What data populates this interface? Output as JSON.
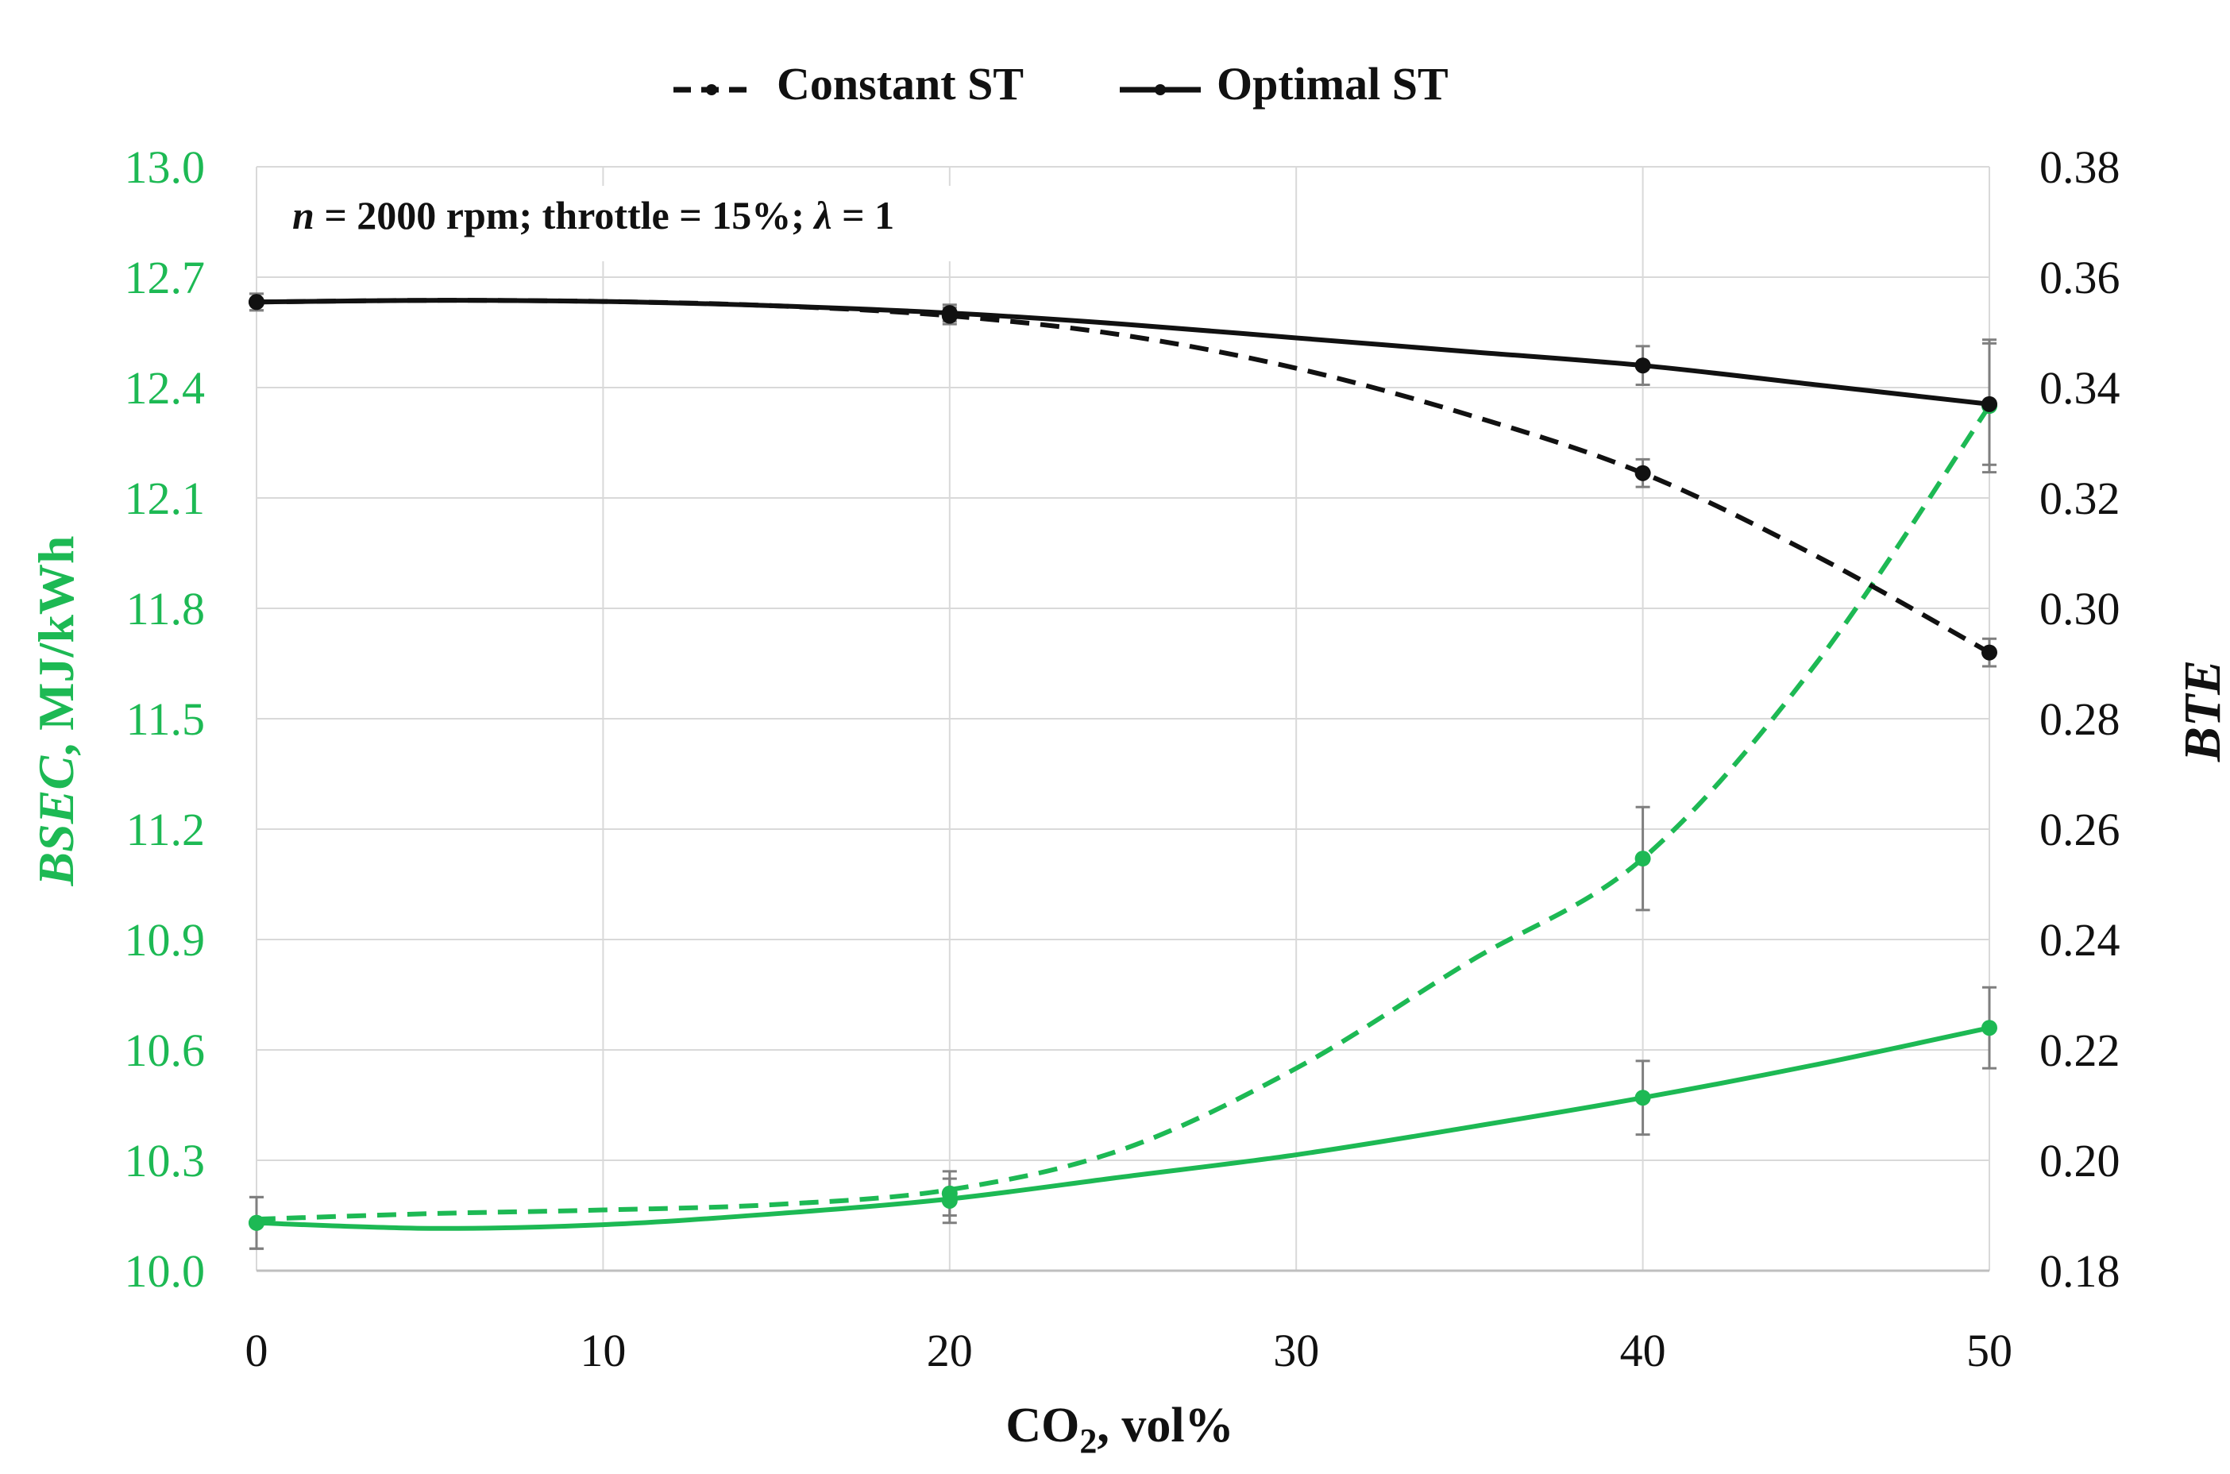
{
  "chart_data": {
    "type": "line",
    "x": [
      0,
      20,
      40,
      50
    ],
    "xlim": [
      0,
      50
    ],
    "xticks": [
      0,
      10,
      20,
      30,
      40,
      50
    ],
    "xticklabels": [
      "0",
      "10",
      "20",
      "30",
      "40",
      "50"
    ],
    "xlabel": {
      "main": "CO",
      "sub": "2",
      "rest": ", vol%"
    },
    "left_axis": {
      "ylim": [
        10.0,
        13.0
      ],
      "ticks": [
        10.0,
        10.3,
        10.6,
        10.9,
        11.2,
        11.5,
        11.8,
        12.1,
        12.4,
        12.7,
        13.0
      ],
      "ticklabels": [
        "10.0",
        "10.3",
        "10.6",
        "10.9",
        "11.2",
        "11.5",
        "11.8",
        "12.1",
        "12.4",
        "12.7",
        "13.0"
      ],
      "label": {
        "italic": "BSEC",
        "rest": ", MJ/kWh"
      },
      "color": "#1db954"
    },
    "right_axis": {
      "ylim": [
        0.18,
        0.38
      ],
      "ticks": [
        0.18,
        0.2,
        0.22,
        0.24,
        0.26,
        0.28,
        0.3,
        0.32,
        0.34,
        0.36,
        0.38
      ],
      "ticklabels": [
        "0.18",
        "0.20",
        "0.22",
        "0.24",
        "0.26",
        "0.28",
        "0.30",
        "0.32",
        "0.34",
        "0.36",
        "0.38"
      ],
      "label": "BTE",
      "color": "#111111"
    },
    "annotation": {
      "n_symbol": "n",
      "text1": " = 2000 rpm; throttle = 15%; ",
      "lambda_symbol": "λ",
      "text2": " = 1"
    },
    "legend": {
      "position": "top-center",
      "entries": [
        "Constant ST",
        "Optimal ST"
      ]
    },
    "series": [
      {
        "name": "BSEC Constant ST",
        "axis": "left",
        "style": "dashed",
        "color": "#1db954",
        "values": [
          10.13,
          10.21,
          11.12,
          12.35
        ],
        "errors": [
          0.07,
          0.06,
          0.14,
          0.18
        ],
        "curve": [
          [
            0,
            10.14
          ],
          [
            5,
            10.155
          ],
          [
            10,
            10.165
          ],
          [
            15,
            10.18
          ],
          [
            20,
            10.22
          ],
          [
            25,
            10.33
          ],
          [
            30,
            10.55
          ],
          [
            35,
            10.84
          ],
          [
            40,
            11.12
          ],
          [
            45,
            11.65
          ],
          [
            50,
            12.35
          ]
        ]
      },
      {
        "name": "BSEC Optimal ST",
        "axis": "left",
        "style": "solid",
        "color": "#1db954",
        "values": [
          10.13,
          10.19,
          10.47,
          10.66
        ],
        "errors": [
          0.07,
          0.06,
          0.1,
          0.11
        ],
        "curve": [
          [
            0,
            10.13
          ],
          [
            5,
            10.115
          ],
          [
            10,
            10.125
          ],
          [
            15,
            10.155
          ],
          [
            20,
            10.195
          ],
          [
            25,
            10.255
          ],
          [
            30,
            10.315
          ],
          [
            35,
            10.39
          ],
          [
            40,
            10.47
          ],
          [
            45,
            10.56
          ],
          [
            50,
            10.66
          ]
        ]
      },
      {
        "name": "BTE Constant ST",
        "axis": "right",
        "style": "dashed",
        "color": "#111111",
        "values": [
          0.3555,
          0.353,
          0.3245,
          0.292
        ],
        "errors": [
          0.0015,
          0.0015,
          0.0025,
          0.0025
        ],
        "curve": [
          [
            0,
            0.3555
          ],
          [
            5,
            0.3558
          ],
          [
            10,
            0.3556
          ],
          [
            15,
            0.3548
          ],
          [
            20,
            0.353
          ],
          [
            25,
            0.3495
          ],
          [
            30,
            0.3435
          ],
          [
            35,
            0.335
          ],
          [
            40,
            0.3245
          ],
          [
            45,
            0.3095
          ],
          [
            50,
            0.292
          ]
        ]
      },
      {
        "name": "BTE Optimal ST",
        "axis": "right",
        "style": "solid",
        "color": "#111111",
        "values": [
          0.3555,
          0.3535,
          0.344,
          0.337
        ],
        "errors": [
          0.0015,
          0.0015,
          0.0035,
          0.011
        ],
        "curve": [
          [
            0,
            0.3555
          ],
          [
            5,
            0.3558
          ],
          [
            10,
            0.3556
          ],
          [
            15,
            0.3548
          ],
          [
            20,
            0.3535
          ],
          [
            25,
            0.3515
          ],
          [
            30,
            0.349
          ],
          [
            35,
            0.3465
          ],
          [
            40,
            0.344
          ],
          [
            45,
            0.3405
          ],
          [
            50,
            0.337
          ]
        ]
      }
    ]
  }
}
